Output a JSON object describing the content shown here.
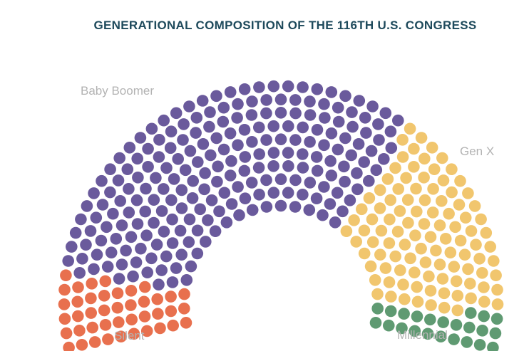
{
  "chart_data": {
    "type": "parliament",
    "title": "GENERATIONAL COMPOSITION OF THE 116TH U.S. CONGRESS",
    "total_seats": 535,
    "series": [
      {
        "name": "Silent",
        "value": 56,
        "color": "#e8704e"
      },
      {
        "name": "Baby Boomer",
        "value": 301,
        "color": "#6a5a9c"
      },
      {
        "name": "Gen X",
        "value": 140,
        "color": "#f1c66e"
      },
      {
        "name": "Millennial",
        "value": 31,
        "color": "#5f9a72"
      }
    ]
  }
}
